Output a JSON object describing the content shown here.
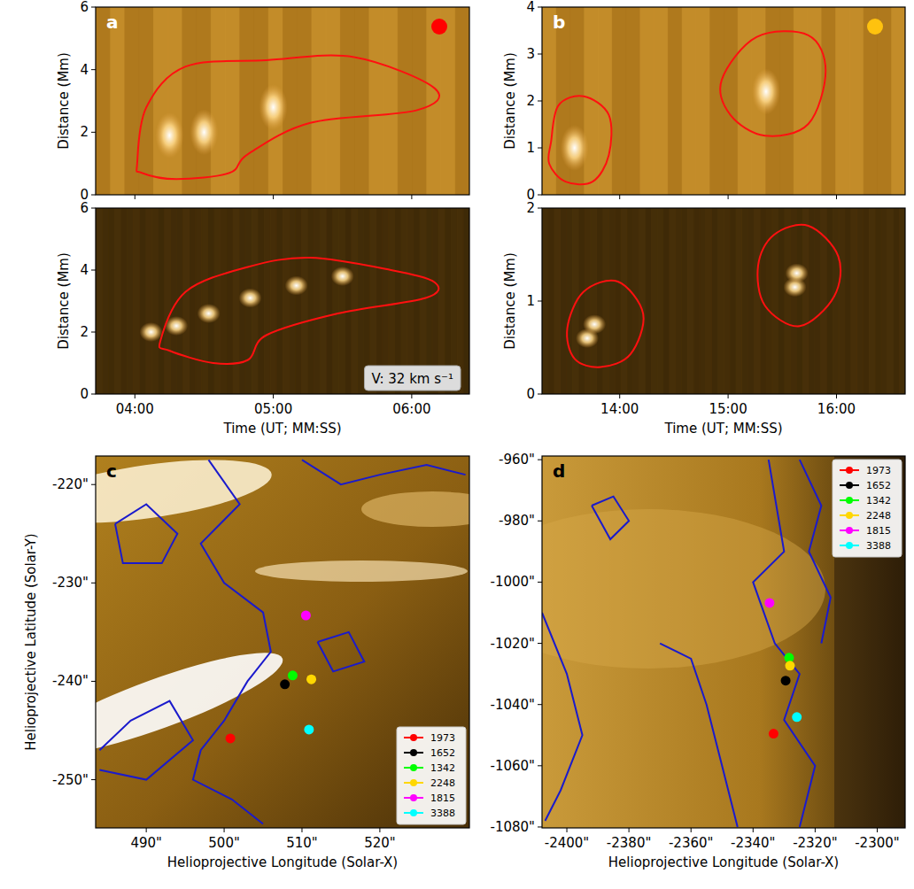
{
  "chart_data": [
    {
      "type": "image",
      "panel_label": "a",
      "y_label": "Distance (Mm)",
      "xlim": [
        223,
        385
      ],
      "ylim": [
        0,
        6
      ],
      "xticks": [
        240,
        300,
        360
      ],
      "yticks": [
        0,
        2,
        4,
        6
      ],
      "tick_labels": "y",
      "contours": [
        {
          "x": [
            241,
            245,
            262,
            297,
            335,
            370,
            362,
            316,
            289,
            281,
            258,
            243
          ],
          "values": [
            1.0,
            2.8,
            4.1,
            4.3,
            4.4,
            3.4,
            2.7,
            2.3,
            1.3,
            0.7,
            0.5,
            0.7
          ]
        }
      ],
      "intensity_peaks": {
        "x": [
          255,
          270,
          300
        ],
        "values": [
          1.9,
          2.0,
          2.8
        ]
      }
    },
    {
      "type": "image",
      "y_label": "Distance (Mm)",
      "x_label": "Time (UT; MM:SS)",
      "xlim": [
        223,
        385
      ],
      "ylim": [
        0,
        6
      ],
      "xticks": [
        {
          "value": 240,
          "label": "04:00"
        },
        {
          "value": 300,
          "label": "05:00"
        },
        {
          "value": 360,
          "label": "06:00"
        }
      ],
      "yticks": [
        0,
        2,
        4,
        6
      ],
      "contours": [
        {
          "x": [
            251,
            262,
            289,
            316,
            351,
            370,
            366,
            328,
            297,
            289,
            274,
            255
          ],
          "values": [
            1.7,
            3.3,
            4.1,
            4.4,
            4.0,
            3.6,
            3.1,
            2.6,
            1.9,
            1.1,
            1.0,
            1.4
          ]
        }
      ],
      "intensity_peaks": {
        "x": [
          247,
          258,
          272,
          290,
          310,
          330
        ],
        "values": [
          2.0,
          2.2,
          2.6,
          3.1,
          3.5,
          3.8
        ]
      },
      "annotation": "V: 32 km s⁻¹"
    },
    {
      "type": "image",
      "panel_label": "b",
      "y_label": "Distance (Mm)",
      "xlim": [
        797,
        998
      ],
      "ylim": [
        0,
        4
      ],
      "xticks": [
        840,
        900,
        960
      ],
      "yticks": [
        0,
        1,
        2,
        3,
        4
      ],
      "tick_labels": "y",
      "contours": [
        {
          "x": [
            802,
            806,
            820,
            834,
            834,
            825,
            810,
            801
          ],
          "values": [
            1.13,
            1.9,
            2.1,
            1.7,
            0.85,
            0.28,
            0.28,
            0.66
          ]
        },
        {
          "x": [
            896.5,
            915.7,
            944.4,
            954,
            944.4,
            920.4,
            901.3
          ],
          "values": [
            2.45,
            3.36,
            3.4,
            2.64,
            1.51,
            1.26,
            1.7
          ]
        }
      ],
      "intensity_peaks": {
        "x": [
          815,
          921
        ],
        "values": [
          1.0,
          2.2
        ]
      }
    },
    {
      "type": "image",
      "y_label": "Distance (Mm)",
      "x_label": "Time (UT; MM:SS)",
      "xlim": [
        797,
        998
      ],
      "ylim": [
        0,
        2
      ],
      "xticks": [
        {
          "value": 840,
          "label": "14:00"
        },
        {
          "value": 900,
          "label": "15:00"
        },
        {
          "value": 960,
          "label": "16:00"
        }
      ],
      "yticks": [
        0,
        1,
        2
      ],
      "contours": [
        {
          "x": [
            811,
            820,
            839,
            853,
            846,
            829.5,
            815
          ],
          "values": [
            0.71,
            1.1,
            1.21,
            0.86,
            0.43,
            0.29,
            0.38
          ]
        },
        {
          "x": [
            916.6,
            925.2,
            944.4,
            961,
            958.7,
            939.6,
            920.4
          ],
          "values": [
            1.38,
            1.71,
            1.81,
            1.48,
            1.05,
            0.73,
            0.95
          ]
        }
      ],
      "intensity_peaks": {
        "x": [
          822,
          826,
          937,
          938
        ],
        "values": [
          0.6,
          0.75,
          1.15,
          1.3
        ]
      }
    },
    {
      "type": "scatter",
      "panel_label": "c",
      "x_label": "Helioprojective Longitude (Solar-X)",
      "y_label": "Helioprojective Latitude (Solar-Y)",
      "xlim": [
        483.5,
        531.5
      ],
      "ylim": [
        -254.9,
        -217.1
      ],
      "xticks": [
        {
          "value": 490,
          "label": "490\""
        },
        {
          "value": 500,
          "label": "500\""
        },
        {
          "value": 510,
          "label": "510\""
        },
        {
          "value": 520,
          "label": "520\""
        }
      ],
      "yticks": [
        {
          "value": -220,
          "label": "-220\""
        },
        {
          "value": -230,
          "label": "-230\""
        },
        {
          "value": -240,
          "label": "-240\""
        },
        {
          "value": -250,
          "label": "-250\""
        }
      ],
      "legend": "lower right",
      "series": [
        {
          "name": "1973",
          "color": "#ff0000",
          "x": [
            500.8
          ],
          "values": [
            -245.8
          ]
        },
        {
          "name": "1652",
          "color": "#000000",
          "x": [
            507.8
          ],
          "values": [
            -240.3
          ]
        },
        {
          "name": "1342",
          "color": "#00ff00",
          "x": [
            508.8
          ],
          "values": [
            -239.4
          ]
        },
        {
          "name": "2248",
          "color": "#ffd700",
          "x": [
            511.2
          ],
          "values": [
            -239.8
          ]
        },
        {
          "name": "1815",
          "color": "#ff00ff",
          "x": [
            510.5
          ],
          "values": [
            -233.3
          ]
        },
        {
          "name": "3388",
          "color": "#00ffff",
          "x": [
            510.9
          ],
          "values": [
            -244.9
          ]
        }
      ],
      "contours": [
        {
          "x": [
            498,
            502,
            497,
            500,
            505,
            506,
            503,
            500,
            497,
            496,
            501,
            505
          ],
          "values": [
            -217.5,
            -222,
            -226,
            -230,
            -233,
            -237,
            -240,
            -244,
            -247,
            -250,
            -252,
            -254.5
          ]
        },
        {
          "x": [
            510,
            515,
            520,
            526,
            531
          ],
          "values": [
            -217.5,
            -220,
            -219,
            -218,
            -219
          ]
        },
        {
          "x": [
            484,
            488,
            493,
            496,
            490,
            484
          ],
          "values": [
            -247,
            -244,
            -242,
            -246,
            -250,
            -249
          ]
        },
        {
          "x": [
            486,
            490,
            494,
            492,
            487,
            486
          ],
          "values": [
            -224,
            -222,
            -225,
            -228,
            -228,
            -224
          ]
        },
        {
          "x": [
            512,
            516,
            518,
            514,
            512
          ],
          "values": [
            -236,
            -235,
            -238,
            -239,
            -236
          ]
        }
      ]
    },
    {
      "type": "scatter",
      "panel_label": "d",
      "x_label": "Helioprojective Longitude (Solar-X)",
      "xlim": [
        -2408,
        -2291
      ],
      "ylim": [
        -1080.3,
        -958.8
      ],
      "xticks": [
        {
          "value": -2400,
          "label": "-2400\""
        },
        {
          "value": -2380,
          "label": "-2380\""
        },
        {
          "value": -2360,
          "label": "-2360\""
        },
        {
          "value": -2340,
          "label": "-2340\""
        },
        {
          "value": -2320,
          "label": "-2320\""
        },
        {
          "value": -2300,
          "label": "-2300\""
        }
      ],
      "yticks": [
        {
          "value": -960,
          "label": "-960\""
        },
        {
          "value": -980,
          "label": "-980\""
        },
        {
          "value": -1000,
          "label": "-1000\""
        },
        {
          "value": -1020,
          "label": "-1020\""
        },
        {
          "value": -1040,
          "label": "-1040\""
        },
        {
          "value": -1060,
          "label": "-1060\""
        },
        {
          "value": -1080,
          "label": "-1080\""
        }
      ],
      "legend": "upper right",
      "series": [
        {
          "name": "1973",
          "color": "#ff0000",
          "x": [
            -2333.4
          ],
          "values": [
            -1049.5
          ]
        },
        {
          "name": "1652",
          "color": "#000000",
          "x": [
            -2329.5
          ],
          "values": [
            -1032.2
          ]
        },
        {
          "name": "1342",
          "color": "#00ff00",
          "x": [
            -2328.4
          ],
          "values": [
            -1024.7
          ]
        },
        {
          "name": "2248",
          "color": "#ffd700",
          "x": [
            -2328.1
          ],
          "values": [
            -1027.3
          ]
        },
        {
          "name": "1815",
          "color": "#ff00ff",
          "x": [
            -2334.7
          ],
          "values": [
            -1006.8
          ]
        },
        {
          "name": "3388",
          "color": "#00ffff",
          "x": [
            -2325.9
          ],
          "values": [
            -1044.1
          ]
        }
      ],
      "contours": [
        {
          "x": [
            -2335,
            -2330,
            -2340,
            -2333,
            -2325,
            -2330,
            -2320,
            -2325
          ],
          "values": [
            -960,
            -990,
            -1000,
            -1020,
            -1030,
            -1045,
            -1060,
            -1080
          ]
        },
        {
          "x": [
            -2408,
            -2400,
            -2395,
            -2402,
            -2407
          ],
          "values": [
            -1010,
            -1030,
            -1050,
            -1068,
            -1078
          ]
        },
        {
          "x": [
            -2325,
            -2318,
            -2322,
            -2315,
            -2318
          ],
          "values": [
            -960,
            -975,
            -990,
            -1005,
            -1020
          ]
        },
        {
          "x": [
            -2370,
            -2360,
            -2355,
            -2350,
            -2345
          ],
          "values": [
            -1020,
            -1025,
            -1040,
            -1060,
            -1080
          ]
        },
        {
          "x": [
            -2392,
            -2385,
            -2380,
            -2386,
            -2392
          ],
          "values": [
            -975,
            -972,
            -980,
            -986,
            -975
          ]
        }
      ]
    }
  ]
}
